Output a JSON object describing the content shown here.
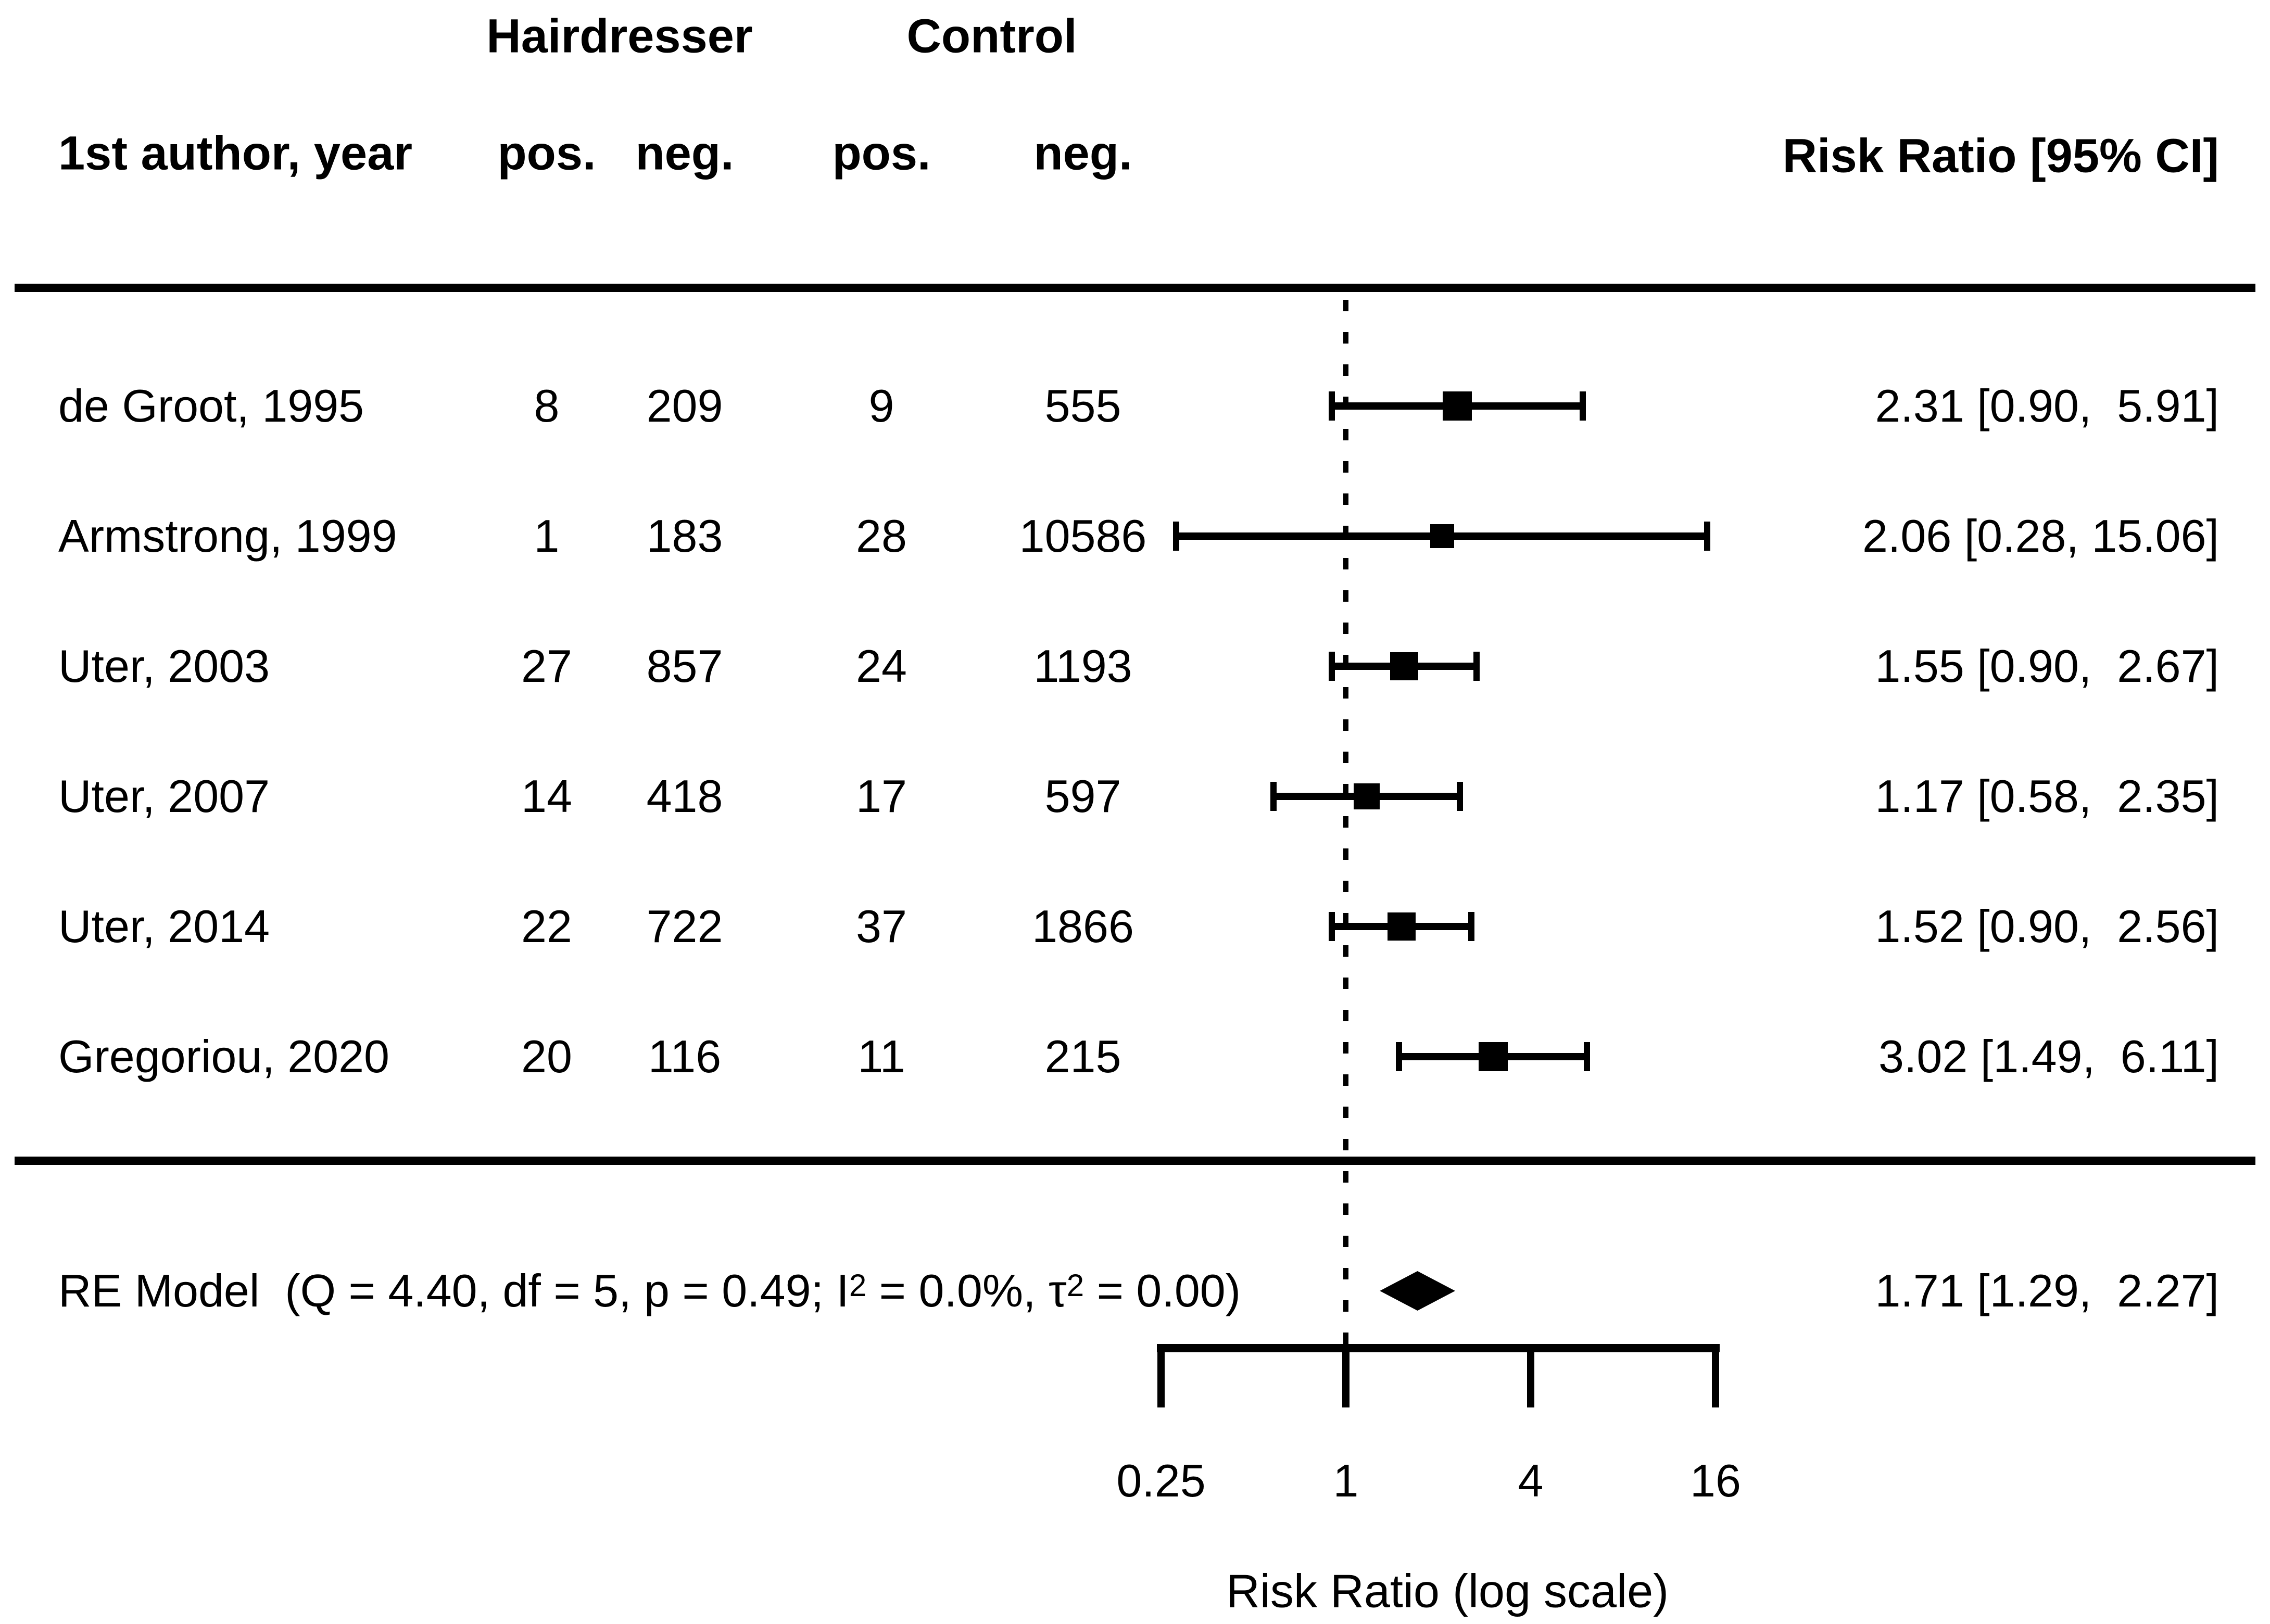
{
  "header": {
    "group1": "Hairdresser",
    "group2": "Control",
    "author_col": "1st author, year",
    "pos1": "pos.",
    "neg1": "neg.",
    "pos2": "pos.",
    "neg2": "neg.",
    "rr_col": "Risk Ratio [95% CI]"
  },
  "colors": {
    "foreground": "#000000",
    "background": "#ffffff"
  },
  "chart_data": {
    "type": "forest",
    "title": "",
    "xlabel": "Risk Ratio (log scale)",
    "x_axis": {
      "scale": "log2",
      "ticks": [
        0.25,
        1,
        4,
        16
      ],
      "tick_labels": [
        "0.25",
        "1",
        "4",
        "16"
      ],
      "ref_line": 1,
      "xlim": [
        0.25,
        16
      ]
    },
    "studies": [
      {
        "author": "de Groot, 1995",
        "h_pos": "8",
        "h_neg": "209",
        "c_pos": "9",
        "c_neg": "555",
        "rr": 2.31,
        "lo": 0.9,
        "hi": 5.91,
        "ci_label": "2.31 [0.90,  5.91]",
        "box": 56
      },
      {
        "author": "Armstrong, 1999",
        "h_pos": "1",
        "h_neg": "183",
        "c_pos": "28",
        "c_neg": "10586",
        "rr": 2.06,
        "lo": 0.28,
        "hi": 15.06,
        "ci_label": "2.06 [0.28, 15.06]",
        "box": 46
      },
      {
        "author": "Uter, 2003",
        "h_pos": "27",
        "h_neg": "857",
        "c_pos": "24",
        "c_neg": "1193",
        "rr": 1.55,
        "lo": 0.9,
        "hi": 2.67,
        "ci_label": "1.55 [0.90,  2.67]",
        "box": 54
      },
      {
        "author": "Uter, 2007",
        "h_pos": "14",
        "h_neg": "418",
        "c_pos": "17",
        "c_neg": "597",
        "rr": 1.17,
        "lo": 0.58,
        "hi": 2.35,
        "ci_label": "1.17 [0.58,  2.35]",
        "box": 50
      },
      {
        "author": "Uter, 2014",
        "h_pos": "22",
        "h_neg": "722",
        "c_pos": "37",
        "c_neg": "1866",
        "rr": 1.52,
        "lo": 0.9,
        "hi": 2.56,
        "ci_label": "1.52 [0.90,  2.56]",
        "box": 54
      },
      {
        "author": "Gregoriou, 2020",
        "h_pos": "20",
        "h_neg": "116",
        "c_pos": "11",
        "c_neg": "215",
        "rr": 3.02,
        "lo": 1.49,
        "hi": 6.11,
        "ci_label": "3.02 [1.49,  6.11]",
        "box": 56
      }
    ],
    "summary": {
      "label_p0": "RE Model  (Q = 4.40, df = 5, p = 0.49; I",
      "label_sup1": "2",
      "label_p1": " = 0.0%, τ",
      "label_sup2": "2",
      "label_p2": " = 0.00)",
      "rr": 1.71,
      "lo": 1.29,
      "hi": 2.27,
      "ci_label": "1.71 [1.29,  2.27]"
    }
  }
}
